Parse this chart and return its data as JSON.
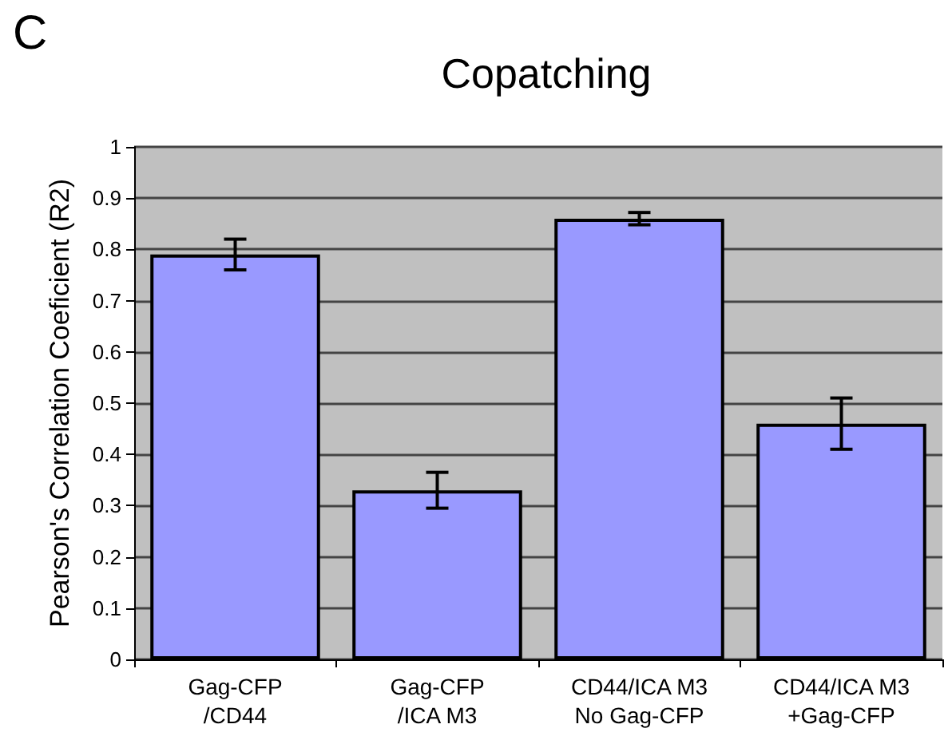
{
  "chart_data": {
    "type": "bar",
    "title": "Copatching",
    "ylabel": "Pearson's Correlation Coeficient (R2)",
    "annotations": [
      "C"
    ],
    "categories": [
      "Gag-CFP\n/CD44",
      "Gag-CFP\n/ICA M3",
      "CD44/ICA M3\nNo Gag-CFP",
      "CD44/ICA M3\n+Gag-CFP"
    ],
    "values": [
      0.79,
      0.33,
      0.86,
      0.46
    ],
    "errors": [
      0.03,
      0.035,
      0.012,
      0.05
    ],
    "color": "#9999ff",
    "ylim": [
      0,
      1
    ],
    "yticks": [
      0,
      0.1,
      0.2,
      0.3,
      0.4,
      0.5,
      0.6,
      0.7,
      0.8,
      0.9,
      1
    ],
    "grid": "y"
  }
}
